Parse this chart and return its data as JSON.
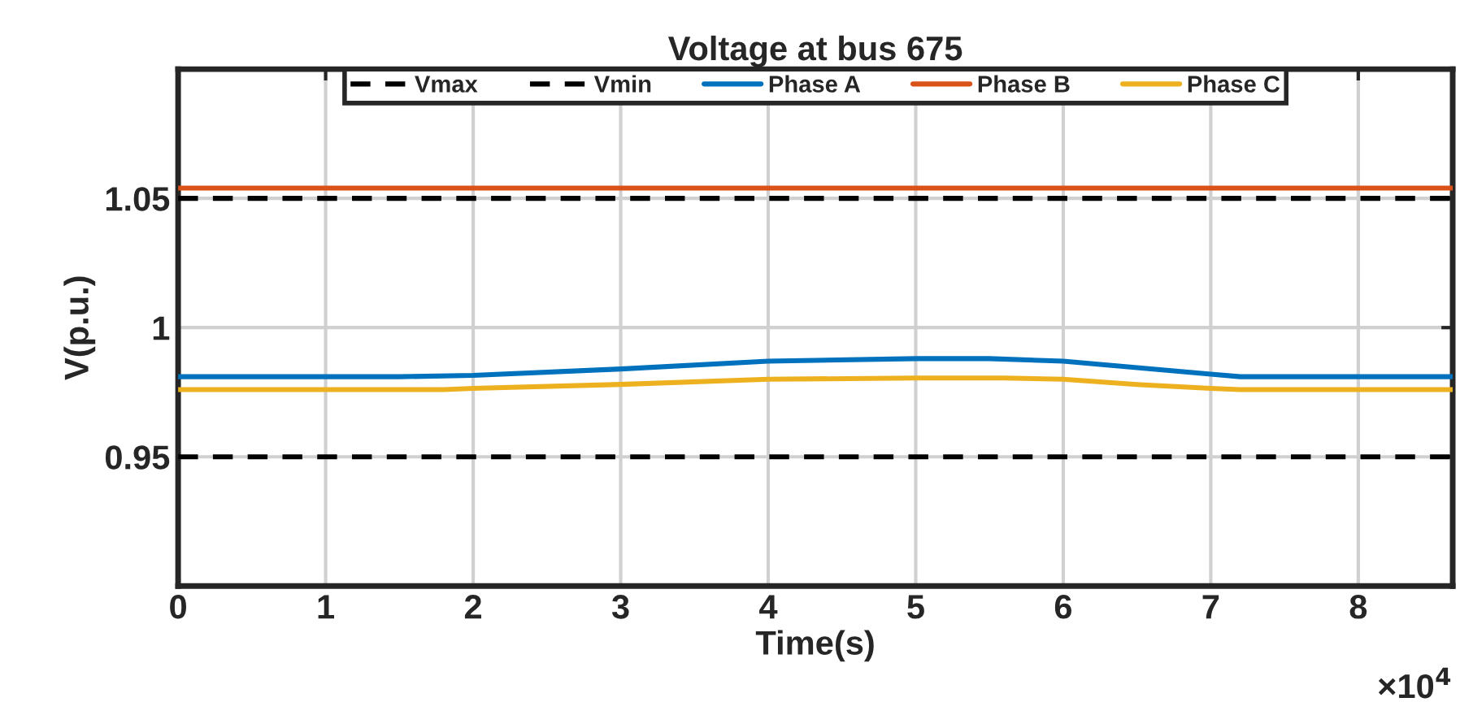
{
  "chart_data": {
    "type": "line",
    "title": "Voltage at bus 675",
    "xlabel": "Time(s)",
    "ylabel": "V(p.u.)",
    "annotations": [
      "×10$^{4}$"
    ],
    "series": [
      {
        "name": "Vmax",
        "color": "#000000",
        "line_style": "dashed",
        "x": [
          0,
          8.64
        ],
        "values": [
          1.05,
          1.05
        ]
      },
      {
        "name": "Vmin",
        "color": "#000000",
        "line_style": "dashed",
        "x": [
          0,
          8.64
        ],
        "values": [
          0.95,
          0.95
        ]
      },
      {
        "name": "Phase A",
        "color": "#0072bd",
        "x": [
          0,
          1.5,
          2,
          3,
          4,
          5,
          5.5,
          6,
          6.5,
          7,
          7.2,
          8.64
        ],
        "values": [
          0.981,
          0.981,
          0.9815,
          0.984,
          0.987,
          0.988,
          0.988,
          0.987,
          0.9845,
          0.982,
          0.981,
          0.981
        ]
      },
      {
        "name": "Phase B",
        "color": "#d95319",
        "x": [
          0,
          8.64
        ],
        "values": [
          1.054,
          1.054
        ]
      },
      {
        "name": "Phase C",
        "color": "#edb120",
        "x": [
          0,
          1.8,
          2,
          3,
          4,
          5,
          5.6,
          6,
          6.5,
          7,
          7.2,
          8.64
        ],
        "values": [
          0.976,
          0.976,
          0.9765,
          0.978,
          0.98,
          0.9805,
          0.9805,
          0.98,
          0.978,
          0.9765,
          0.976,
          0.976
        ]
      }
    ],
    "xlim": [
      0,
      8.64
    ],
    "ylim": [
      0.9,
      1.1
    ],
    "xticks": [
      0,
      1,
      2,
      3,
      4,
      5,
      6,
      7,
      8
    ],
    "yticks": [
      0.95,
      1,
      1.05
    ],
    "grid": true,
    "legend": "top",
    "line_style": "solid",
    "marker": "none"
  }
}
